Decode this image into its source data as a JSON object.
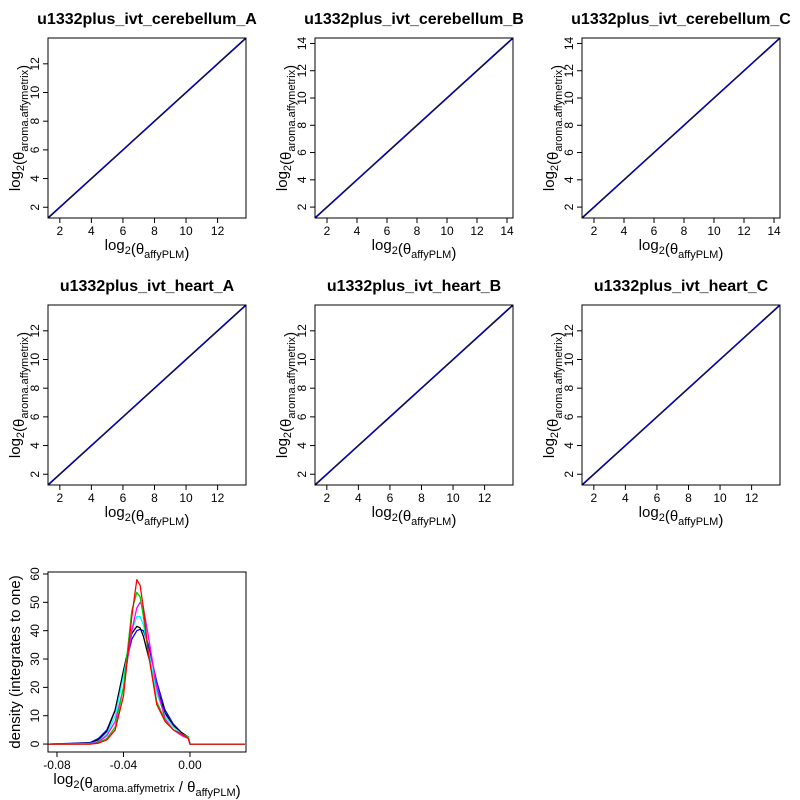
{
  "chart_data": [
    {
      "type": "scatter",
      "title": "u1332plus_ivt_cerebellum_A",
      "xlabel": "log2(θ_affyPLM)",
      "ylabel": "log2(θ_aroma.affymetrix)",
      "xlim": [
        1.25,
        13.8
      ],
      "ylim": [
        1.25,
        13.8
      ],
      "ticks": [
        2,
        4,
        6,
        8,
        10,
        12
      ],
      "series": [
        {
          "color": "#0000ff",
          "x": [
            1.25,
            13.8
          ],
          "y": [
            1.25,
            13.8
          ]
        }
      ]
    },
    {
      "type": "scatter",
      "title": "u1332plus_ivt_cerebellum_B",
      "xlabel": "log2(θ_affyPLM)",
      "ylabel": "log2(θ_aroma.affymetrix)",
      "xlim": [
        1.2,
        14.4
      ],
      "ylim": [
        1.2,
        14.4
      ],
      "ticks": [
        2,
        4,
        6,
        8,
        10,
        12,
        14
      ],
      "series": [
        {
          "color": "#0000ff",
          "x": [
            1.2,
            14.4
          ],
          "y": [
            1.2,
            14.4
          ]
        }
      ]
    },
    {
      "type": "scatter",
      "title": "u1332plus_ivt_cerebellum_C",
      "xlabel": "log2(θ_affyPLM)",
      "ylabel": "log2(θ_aroma.affymetrix)",
      "xlim": [
        1.2,
        14.4
      ],
      "ylim": [
        1.2,
        14.4
      ],
      "ticks": [
        2,
        4,
        6,
        8,
        10,
        12,
        14
      ],
      "series": [
        {
          "color": "#0000ff",
          "x": [
            1.2,
            14.4
          ],
          "y": [
            1.2,
            14.4
          ]
        }
      ]
    },
    {
      "type": "scatter",
      "title": "u1332plus_ivt_heart_A",
      "xlabel": "log2(θ_affyPLM)",
      "ylabel": "log2(θ_aroma.affymetrix)",
      "xlim": [
        1.25,
        13.8
      ],
      "ylim": [
        1.25,
        13.8
      ],
      "ticks": [
        2,
        4,
        6,
        8,
        10,
        12
      ],
      "series": [
        {
          "color": "#0000ff",
          "x": [
            1.25,
            13.8
          ],
          "y": [
            1.25,
            13.8
          ]
        }
      ]
    },
    {
      "type": "scatter",
      "title": "u1332plus_ivt_heart_B",
      "xlabel": "log2(θ_affyPLM)",
      "ylabel": "log2(θ_aroma.affymetrix)",
      "xlim": [
        1.25,
        13.8
      ],
      "ylim": [
        1.25,
        13.8
      ],
      "ticks": [
        2,
        4,
        6,
        8,
        10,
        12
      ],
      "series": [
        {
          "color": "#0000ff",
          "x": [
            1.25,
            13.8
          ],
          "y": [
            1.25,
            13.8
          ]
        }
      ]
    },
    {
      "type": "scatter",
      "title": "u1332plus_ivt_heart_C",
      "xlabel": "log2(θ_affyPLM)",
      "ylabel": "log2(θ_aroma.affymetrix)",
      "xlim": [
        1.25,
        13.8
      ],
      "ylim": [
        1.25,
        13.8
      ],
      "ticks": [
        2,
        4,
        6,
        8,
        10,
        12
      ],
      "series": [
        {
          "color": "#0000ff",
          "x": [
            1.25,
            13.8
          ],
          "y": [
            1.25,
            13.8
          ]
        }
      ]
    },
    {
      "type": "line",
      "title": "",
      "xlabel": "log2(θ_aroma.affymetrix / θ_affyPLM)",
      "ylabel": "density (integrates to one)",
      "xlim": [
        -0.0854,
        0.0337
      ],
      "ylim": [
        -2.8,
        60.7
      ],
      "xticks": [
        -0.08,
        -0.04,
        0.0
      ],
      "xtick_labels": [
        "-0.08",
        "-0.04",
        "0.00"
      ],
      "yticks": [
        0,
        10,
        20,
        30,
        40,
        50,
        60
      ],
      "x": [
        -0.085,
        -0.06,
        -0.055,
        -0.05,
        -0.045,
        -0.04,
        -0.035,
        -0.032,
        -0.03,
        -0.028,
        -0.025,
        -0.02,
        -0.015,
        -0.01,
        -0.005,
        -0.001,
        0.0,
        0.02,
        0.033
      ],
      "series": [
        {
          "color": "#0000ff",
          "values": [
            0,
            0.5,
            2,
            5,
            12,
            25,
            37,
            40,
            40.5,
            40,
            35,
            22,
            12,
            7,
            4,
            2.5,
            0,
            0,
            0
          ]
        },
        {
          "color": "#000000",
          "values": [
            0,
            0.3,
            1.5,
            4.5,
            12,
            26,
            39,
            41.5,
            41,
            38,
            31,
            20,
            11,
            6.5,
            4,
            2.5,
            0,
            0,
            0
          ]
        },
        {
          "color": "#00ffff",
          "values": [
            0,
            0.2,
            1,
            3.5,
            10,
            24,
            40,
            45,
            45,
            42,
            33,
            18,
            10,
            6,
            3.5,
            2.5,
            0,
            0,
            0
          ]
        },
        {
          "color": "#ff00ff",
          "values": [
            0,
            0.1,
            0.8,
            3,
            8,
            20,
            40,
            48,
            50,
            48,
            38,
            20,
            9,
            5,
            3,
            2,
            0,
            0,
            0
          ]
        },
        {
          "color": "#00cd00",
          "values": [
            0,
            0,
            0.5,
            2,
            6,
            20,
            47,
            53.5,
            52,
            45,
            32,
            15,
            8.5,
            5,
            3.5,
            2.5,
            0,
            0,
            0
          ]
        },
        {
          "color": "#ff0000",
          "values": [
            0,
            0,
            0.3,
            1.5,
            5,
            17,
            45,
            58,
            56,
            48,
            32,
            14,
            8,
            5,
            3.5,
            2,
            0,
            0,
            0
          ]
        }
      ]
    }
  ]
}
